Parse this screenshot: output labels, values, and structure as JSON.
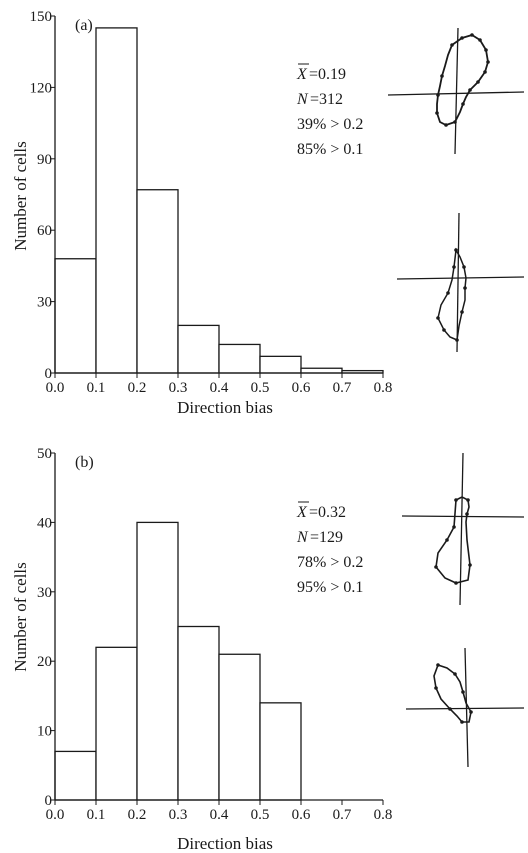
{
  "chart_data": [
    {
      "type": "bar",
      "panel_label": "(a)",
      "xlabel": "Direction bias",
      "ylabel": "Number of cells",
      "bin_edges": [
        0.0,
        0.1,
        0.2,
        0.3,
        0.4,
        0.5,
        0.6,
        0.7,
        0.8
      ],
      "xticks": [
        "0.0",
        "0.1",
        "0.2",
        "0.3",
        "0.4",
        "0.5",
        "0.6",
        "0.7",
        "0.8"
      ],
      "values": [
        48,
        145,
        77,
        20,
        12,
        7,
        2,
        1
      ],
      "ylim": [
        0,
        150
      ],
      "yticks": [
        "0",
        "30",
        "60",
        "90",
        "120",
        "150"
      ],
      "annotations": {
        "mean_symbol": "X",
        "mean": "=0.19",
        "n_symbol": "N",
        "n": "=312",
        "pct_02": "39% > 0.2",
        "pct_01": "85% > 0.1"
      }
    },
    {
      "type": "bar",
      "panel_label": "(b)",
      "xlabel": "Direction bias",
      "ylabel": "Number of cells",
      "bin_edges": [
        0.0,
        0.1,
        0.2,
        0.3,
        0.4,
        0.5,
        0.6,
        0.7,
        0.8
      ],
      "xticks": [
        "0.0",
        "0.1",
        "0.2",
        "0.3",
        "0.4",
        "0.5",
        "0.6",
        "0.7",
        "0.8"
      ],
      "values": [
        7,
        22,
        40,
        25,
        21,
        14,
        0,
        0
      ],
      "ylim": [
        0,
        50
      ],
      "yticks": [
        "0",
        "10",
        "20",
        "30",
        "40",
        "50"
      ],
      "annotations": {
        "mean_symbol": "X",
        "mean": "=0.32",
        "n_symbol": "N",
        "n": "=129",
        "pct_02": "78% > 0.2",
        "pct_01": "95% > 0.1"
      }
    }
  ]
}
